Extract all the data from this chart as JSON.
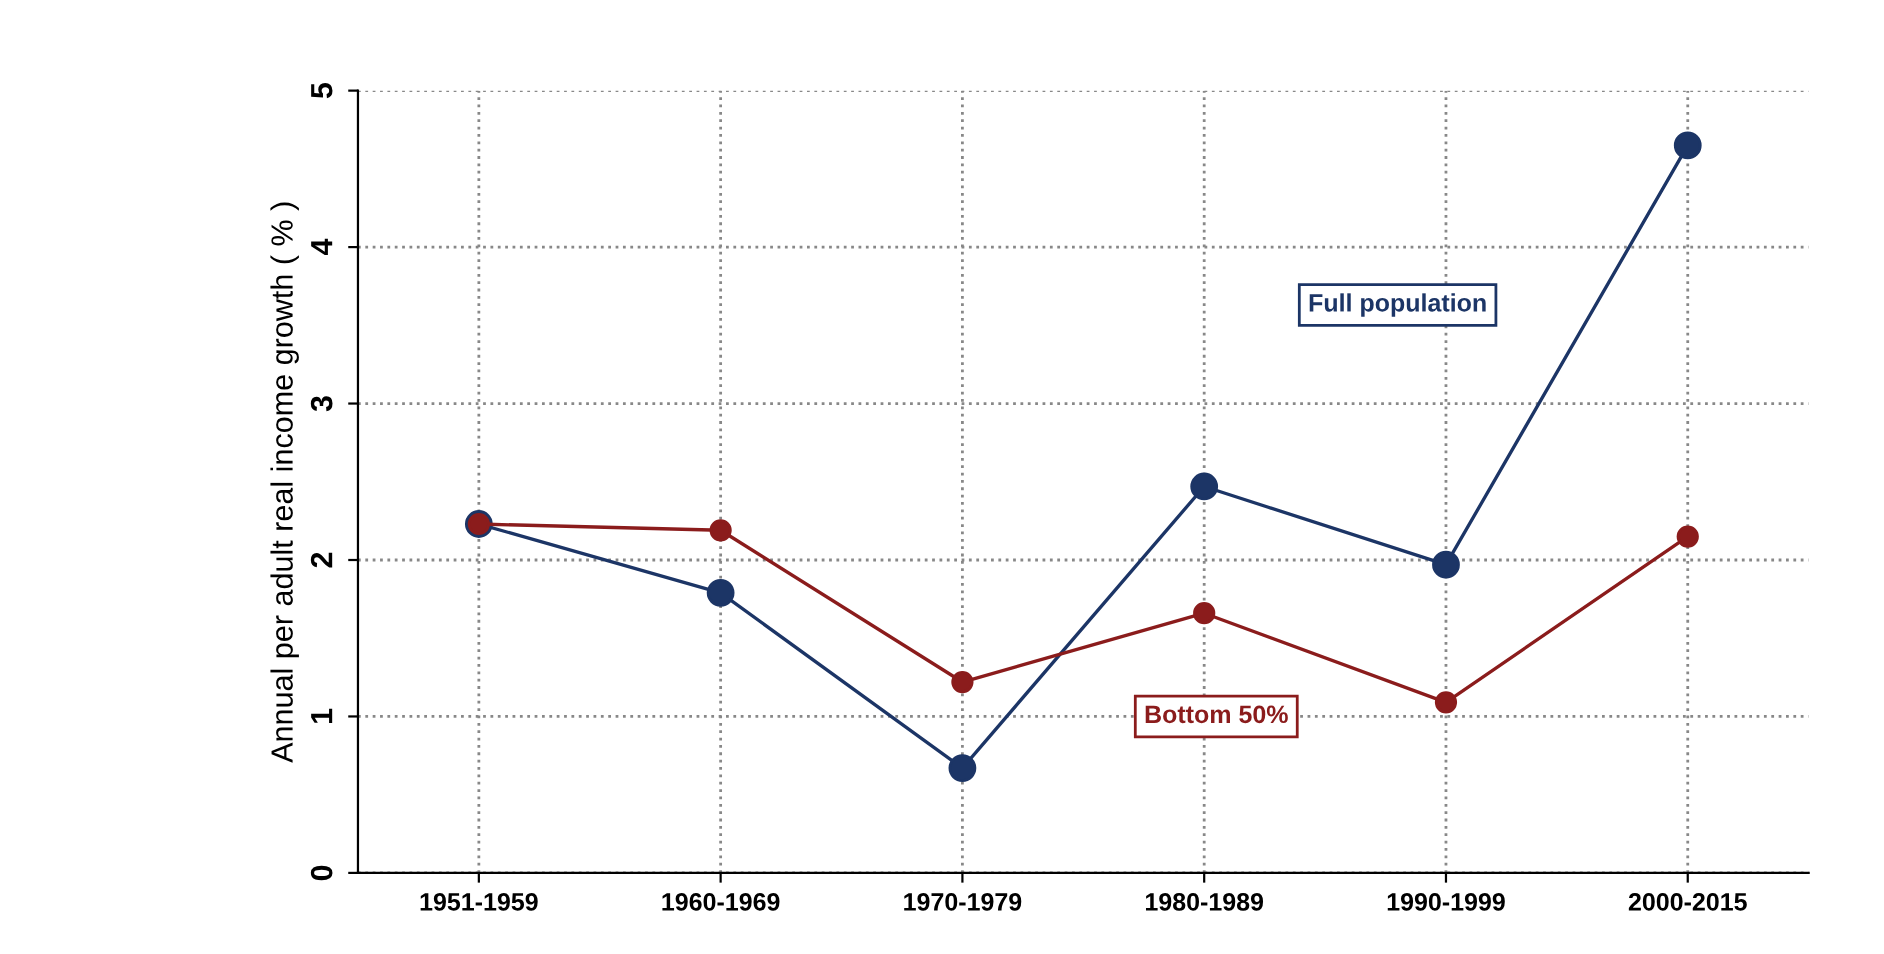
{
  "chart_data": {
    "type": "line",
    "ylabel": "Annual per adult real income growth ( % )",
    "categories": [
      "1951-1959",
      "1960-1969",
      "1970-1979",
      "1980-1989",
      "1990-1999",
      "2000-2015"
    ],
    "series": [
      {
        "name": "Full population",
        "color": "#1c3566",
        "values": [
          2.23,
          1.79,
          0.67,
          2.47,
          1.97,
          4.65
        ]
      },
      {
        "name": "Bottom 50%",
        "color": "#8b1c1c",
        "values": [
          2.23,
          2.19,
          1.22,
          1.66,
          1.09,
          2.15
        ]
      }
    ],
    "ylim": [
      0,
      5
    ],
    "yticks": [
      0,
      1,
      2,
      3,
      4,
      5
    ],
    "grid": true,
    "marker": "circle",
    "line_style": "solid",
    "legend": false
  }
}
